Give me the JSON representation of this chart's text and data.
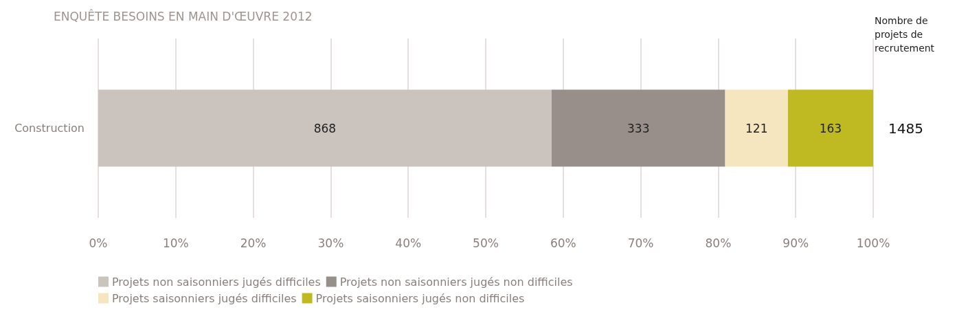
{
  "chart_data": {
    "type": "bar",
    "orientation": "horizontal",
    "stacked": true,
    "title": "ENQUÊTE BESOINS EN MAIN D'ŒUVRE 2012",
    "categories": [
      "Construction"
    ],
    "series": [
      {
        "name": "Projets non saisonniers jugés difficiles",
        "color": "#cbc3be",
        "values": [
          58.5
        ]
      },
      {
        "name": "Projets non saisonniers jugés non difficiles",
        "color": "#998f8a",
        "values": [
          22.4
        ]
      },
      {
        "name": "Projets saisonniers jugés difficiles",
        "color": "#f5e6c0",
        "values": [
          8.1
        ]
      },
      {
        "name": "Projets saisonniers jugés non difficiles",
        "color": "#bfba22",
        "values": [
          11.0
        ]
      }
    ],
    "annotations": [
      "Nombre de projets de recrutement",
      "868",
      "333",
      "121",
      "163",
      "1485"
    ],
    "xlim": [
      0,
      100
    ],
    "xticks": [
      {
        "value": 0,
        "label": "0%"
      },
      {
        "value": 10,
        "label": "10%"
      },
      {
        "value": 20,
        "label": "20%"
      },
      {
        "value": 30,
        "label": "30%"
      },
      {
        "value": 40,
        "label": "40%"
      },
      {
        "value": 50,
        "label": "50%"
      },
      {
        "value": 60,
        "label": "60%"
      },
      {
        "value": 70,
        "label": "70%"
      },
      {
        "value": 80,
        "label": "80%"
      },
      {
        "value": 90,
        "label": "90%"
      },
      {
        "value": 100,
        "label": "100%"
      }
    ],
    "grid": "x",
    "legend": "bottom"
  }
}
